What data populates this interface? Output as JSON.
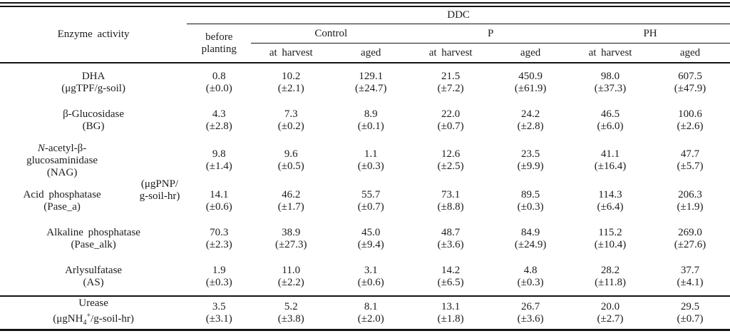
{
  "table": {
    "header": {
      "enzyme_activity": "Enzyme activity",
      "ddc": "DDC",
      "before_line1": "before",
      "before_line2": "planting",
      "group_control": "Control",
      "group_p": "P",
      "group_ph": "PH",
      "sub_at_harvest": "at harvest",
      "sub_aged": "aged"
    },
    "pnp_unit": {
      "line1": "(μgPNP/",
      "line2": "g-soil-hr)"
    },
    "rows": [
      {
        "name1": "DHA",
        "name2": "(μgTPF/g-soil)",
        "cells": [
          {
            "v": "0.8",
            "sd": "(±0.0)"
          },
          {
            "v": "10.2",
            "sd": "(±2.1)"
          },
          {
            "v": "129.1",
            "sd": "(±24.7)"
          },
          {
            "v": "21.5",
            "sd": "(±7.2)"
          },
          {
            "v": "450.9",
            "sd": "(±61.9)"
          },
          {
            "v": "98.0",
            "sd": "(±37.3)"
          },
          {
            "v": "607.5",
            "sd": "(±47.9)"
          }
        ]
      },
      {
        "name1": "β-Glucosidase",
        "name2": "(BG)",
        "cells": [
          {
            "v": "4.3",
            "sd": "(±2.8)"
          },
          {
            "v": "7.3",
            "sd": "(±0.2)"
          },
          {
            "v": "8.9",
            "sd": "(±0.1)"
          },
          {
            "v": "22.0",
            "sd": "(±0.7)"
          },
          {
            "v": "24.2",
            "sd": "(±2.8)"
          },
          {
            "v": "46.5",
            "sd": "(±6.0)"
          },
          {
            "v": "100.6",
            "sd": "(±2.6)"
          }
        ]
      },
      {
        "name1_italic": "N",
        "name1_rest": "-acetyl-β-",
        "name2": "glucosaminidase",
        "name3": "(NAG)",
        "cells": [
          {
            "v": "9.8",
            "sd": "(±1.4)"
          },
          {
            "v": "9.6",
            "sd": "(±0.5)"
          },
          {
            "v": "1.1",
            "sd": "(±0.3)"
          },
          {
            "v": "12.6",
            "sd": "(±2.5)"
          },
          {
            "v": "23.5",
            "sd": "(±9.9)"
          },
          {
            "v": "41.1",
            "sd": "(±16.4)"
          },
          {
            "v": "47.7",
            "sd": "(±5.7)"
          }
        ]
      },
      {
        "name1": "Acid phosphatase",
        "name2": "(Pase_a)",
        "cells": [
          {
            "v": "14.1",
            "sd": "(±0.6)"
          },
          {
            "v": "46.2",
            "sd": "(±1.7)"
          },
          {
            "v": "55.7",
            "sd": "(±0.7)"
          },
          {
            "v": "73.1",
            "sd": "(±8.8)"
          },
          {
            "v": "89.5",
            "sd": "(±0.3)"
          },
          {
            "v": "114.3",
            "sd": "(±6.4)"
          },
          {
            "v": "206.3",
            "sd": "(±1.9)"
          }
        ]
      },
      {
        "name1": "Alkaline phosphatase",
        "name2": "(Pase_alk)",
        "cells": [
          {
            "v": "70.3",
            "sd": "(±2.3)"
          },
          {
            "v": "38.9",
            "sd": "(±27.3)"
          },
          {
            "v": "45.0",
            "sd": "(±9.4)"
          },
          {
            "v": "48.7",
            "sd": "(±3.6)"
          },
          {
            "v": "84.9",
            "sd": "(±24.9)"
          },
          {
            "v": "115.2",
            "sd": "(±10.4)"
          },
          {
            "v": "269.0",
            "sd": "(±27.6)"
          }
        ]
      },
      {
        "name1": "Arlysulfatase",
        "name2": "(AS)",
        "cells": [
          {
            "v": "1.9",
            "sd": "(±0.3)"
          },
          {
            "v": "11.0",
            "sd": "(±2.2)"
          },
          {
            "v": "3.1",
            "sd": "(±0.6)"
          },
          {
            "v": "14.2",
            "sd": "(±6.5)"
          },
          {
            "v": "4.8",
            "sd": "(±0.3)"
          },
          {
            "v": "28.2",
            "sd": "(±11.8)"
          },
          {
            "v": "37.7",
            "sd": "(±4.1)"
          }
        ]
      },
      {
        "name1": "Urease",
        "unit_pre": "(μgNH",
        "unit_sub": "4",
        "unit_sup": "+",
        "unit_post": "/g-soil-hr)",
        "cells": [
          {
            "v": "3.5",
            "sd": "(±3.1)"
          },
          {
            "v": "5.2",
            "sd": "(±3.8)"
          },
          {
            "v": "8.1",
            "sd": "(±2.0)"
          },
          {
            "v": "13.1",
            "sd": "(±1.8)"
          },
          {
            "v": "26.7",
            "sd": "(±3.6)"
          },
          {
            "v": "20.0",
            "sd": "(±2.7)"
          },
          {
            "v": "29.5",
            "sd": "(±0.7)"
          }
        ]
      }
    ]
  }
}
